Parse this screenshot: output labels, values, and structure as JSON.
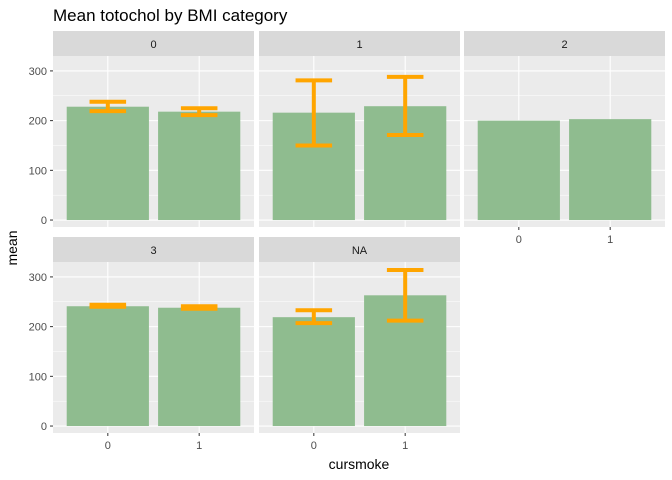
{
  "chart_data": {
    "type": "bar",
    "title": "Mean totochol by BMI category",
    "xlabel": "cursmoke",
    "ylabel": "mean",
    "ylim": [
      0,
      330
    ],
    "yticks": [
      0,
      100,
      200,
      300
    ],
    "categories": [
      "0",
      "1"
    ],
    "bar_color": "#8FBC8F",
    "error_color": "#FFA500",
    "panel_bg": "#EBEBEB",
    "strip_bg": "#D9D9D9",
    "grid_color": "#FFFFFF",
    "facets": [
      {
        "label": "0",
        "values": [
          228,
          218
        ],
        "errors": [
          [
            219,
            238
          ],
          [
            211,
            225
          ]
        ]
      },
      {
        "label": "1",
        "values": [
          216,
          229
        ],
        "errors": [
          [
            150,
            281
          ],
          [
            171,
            288
          ]
        ]
      },
      {
        "label": "2",
        "values": [
          200,
          203
        ],
        "errors": [
          null,
          null
        ]
      },
      {
        "label": "3",
        "values": [
          241,
          238
        ],
        "errors": [
          [
            240,
            244
          ],
          [
            236,
            241
          ]
        ]
      },
      {
        "label": "NA",
        "values": [
          219,
          263
        ],
        "errors": [
          [
            207,
            233
          ],
          [
            212,
            314
          ]
        ]
      }
    ]
  }
}
